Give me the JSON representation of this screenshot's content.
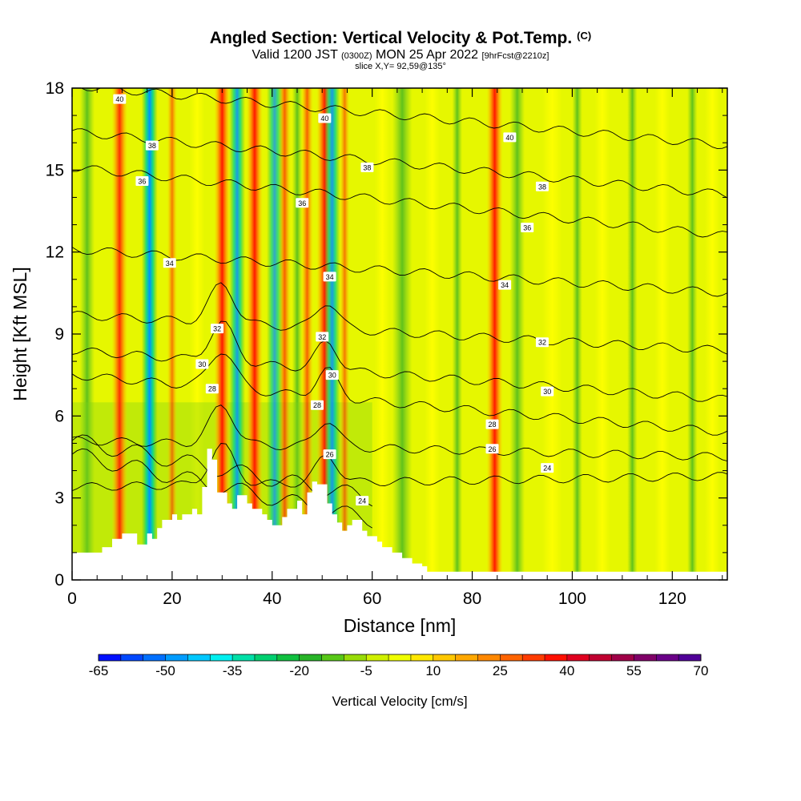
{
  "header": {
    "title": "Angled Section: Vertical Velocity & Pot.Temp.",
    "copyright": "(C)",
    "valid_main": "Valid 1200 JST",
    "valid_utc": "(0300Z)",
    "valid_date": "MON 25 Apr 2022",
    "forecast": "[9hrFcst@2210z]",
    "slice": "slice X,Y= 92,59@135°"
  },
  "chart_data": {
    "type": "heatmap",
    "xlabel": "Distance [nm]",
    "ylabel": "Height [Kft MSL]",
    "xlim": [
      0,
      131
    ],
    "ylim": [
      0,
      18
    ],
    "x_ticks": [
      0,
      20,
      40,
      60,
      80,
      100,
      120
    ],
    "y_ticks": [
      0,
      3,
      6,
      9,
      12,
      15,
      18
    ],
    "colorbar": {
      "title": "Vertical Velocity [cm/s]",
      "min": -65,
      "max": 70,
      "step": 5,
      "tick_values": [
        -65,
        -50,
        -35,
        -20,
        -5,
        10,
        25,
        40,
        55,
        70
      ],
      "colors": [
        "#0010ff",
        "#0048ff",
        "#0070ff",
        "#009cff",
        "#00c8ff",
        "#00f0f0",
        "#00e0a8",
        "#00d070",
        "#10c040",
        "#28b428",
        "#58c818",
        "#98dc08",
        "#d0f000",
        "#f0ff00",
        "#ffe800",
        "#ffc800",
        "#ffa800",
        "#ff8800",
        "#ff6400",
        "#ff3c00",
        "#ff1000",
        "#e00020",
        "#c00030",
        "#a00048",
        "#800068",
        "#6a0088",
        "#500098"
      ]
    },
    "isentropes": {
      "unit": "C",
      "levels": [
        24,
        26,
        28,
        30,
        32,
        34,
        36,
        38,
        40
      ],
      "labeled_points": [
        {
          "label": "40",
          "x": 9.5,
          "y": 17.6
        },
        {
          "label": "40",
          "x": 50.5,
          "y": 16.9
        },
        {
          "label": "40",
          "x": 87.5,
          "y": 16.2
        },
        {
          "label": "38",
          "x": 16,
          "y": 15.9
        },
        {
          "label": "38",
          "x": 59,
          "y": 15.1
        },
        {
          "label": "38",
          "x": 94,
          "y": 14.4
        },
        {
          "label": "36",
          "x": 14,
          "y": 14.6
        },
        {
          "label": "36",
          "x": 46,
          "y": 13.8
        },
        {
          "label": "36",
          "x": 91,
          "y": 12.9
        },
        {
          "label": "34",
          "x": 19.5,
          "y": 11.6
        },
        {
          "label": "34",
          "x": 51.5,
          "y": 11.1
        },
        {
          "label": "34",
          "x": 86.5,
          "y": 10.8
        },
        {
          "label": "32",
          "x": 29,
          "y": 9.2
        },
        {
          "label": "32",
          "x": 50,
          "y": 8.9
        },
        {
          "label": "32",
          "x": 94,
          "y": 8.7
        },
        {
          "label": "30",
          "x": 26,
          "y": 7.9
        },
        {
          "label": "30",
          "x": 52,
          "y": 7.5
        },
        {
          "label": "30",
          "x": 95,
          "y": 6.9
        },
        {
          "label": "28",
          "x": 28,
          "y": 7.0
        },
        {
          "label": "28",
          "x": 49,
          "y": 6.4
        },
        {
          "label": "28",
          "x": 84,
          "y": 5.7
        },
        {
          "label": "26",
          "x": 51.5,
          "y": 4.6
        },
        {
          "label": "26",
          "x": 84,
          "y": 4.8
        },
        {
          "label": "24",
          "x": 58,
          "y": 2.9
        },
        {
          "label": "24",
          "x": 95,
          "y": 4.1
        }
      ]
    },
    "updraft_columns_cm_s": [
      {
        "x": 9.5,
        "peak": 40
      },
      {
        "x": 20,
        "peak": 25
      },
      {
        "x": 30,
        "peak": 45
      },
      {
        "x": 36.5,
        "peak": 50
      },
      {
        "x": 42.5,
        "peak": 30
      },
      {
        "x": 47,
        "peak": 30
      },
      {
        "x": 50.5,
        "peak": 45
      },
      {
        "x": 54.5,
        "peak": 25
      },
      {
        "x": 84.5,
        "peak": 45
      }
    ],
    "downdraft_columns_cm_s": [
      {
        "x": 15.5,
        "peak": -50
      },
      {
        "x": 33,
        "peak": -40
      },
      {
        "x": 40.5,
        "peak": -35
      },
      {
        "x": 52,
        "peak": -40
      }
    ],
    "terrain_kft": {
      "x": [
        0,
        5,
        6,
        6,
        8,
        8,
        10,
        10,
        13,
        13,
        15,
        15,
        16,
        16,
        17,
        17,
        18,
        18,
        20,
        20,
        21,
        21,
        22,
        22,
        24,
        24,
        25,
        25,
        26,
        26,
        27,
        27,
        28,
        28,
        29,
        29,
        31,
        31,
        32,
        32,
        33,
        33,
        35,
        35,
        36,
        36,
        38,
        38,
        39,
        39,
        40,
        40,
        42,
        42,
        43,
        43,
        45,
        45,
        46,
        46,
        47,
        47,
        48,
        48,
        49,
        49,
        51,
        51,
        52,
        52,
        53,
        53,
        54,
        54,
        55,
        55,
        56,
        56,
        58,
        58,
        59,
        59,
        61,
        61,
        62,
        62,
        64,
        64,
        66,
        66,
        68,
        68,
        70,
        70,
        71,
        71,
        131
      ],
      "h": [
        1.0,
        1.0,
        1.0,
        1.2,
        1.2,
        1.5,
        1.5,
        1.7,
        1.7,
        1.3,
        1.3,
        1.7,
        1.7,
        1.5,
        1.5,
        1.9,
        1.9,
        2.2,
        2.2,
        2.4,
        2.4,
        2.2,
        2.2,
        2.4,
        2.4,
        2.6,
        2.6,
        2.4,
        2.4,
        3.4,
        3.4,
        4.8,
        4.8,
        4.4,
        4.4,
        3.2,
        3.2,
        2.8,
        2.8,
        2.6,
        2.6,
        3.1,
        3.1,
        2.8,
        2.8,
        2.6,
        2.6,
        2.4,
        2.4,
        2.2,
        2.2,
        2.0,
        2.0,
        2.3,
        2.3,
        2.6,
        2.6,
        2.9,
        2.9,
        2.4,
        2.4,
        3.2,
        3.2,
        3.6,
        3.6,
        3.5,
        3.5,
        2.8,
        2.8,
        2.4,
        2.4,
        2.1,
        2.1,
        1.8,
        1.8,
        2.0,
        2.0,
        2.2,
        2.2,
        1.8,
        1.8,
        1.6,
        1.6,
        1.4,
        1.4,
        1.2,
        1.2,
        1.0,
        1.0,
        0.8,
        0.8,
        0.6,
        0.6,
        0.5,
        0.5,
        0.3,
        0.3
      ]
    }
  }
}
